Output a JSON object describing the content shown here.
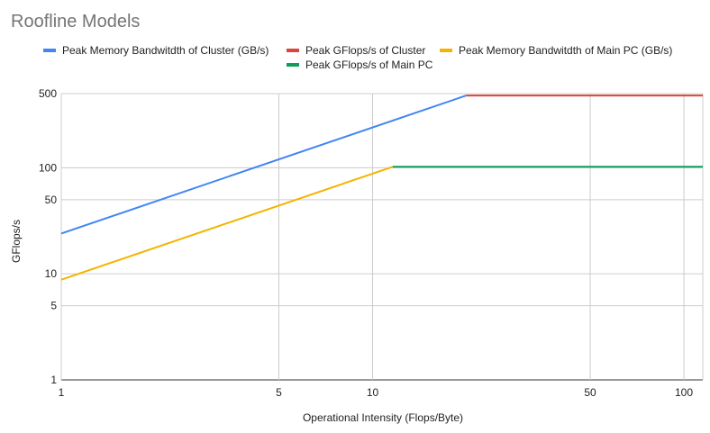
{
  "chart_data": {
    "type": "line",
    "title": "Roofline Models",
    "xlabel": "Operational Intensity (Flops/Byte)",
    "ylabel": "GFlops/s",
    "x_scale": "log",
    "y_scale": "log",
    "xlim": [
      1,
      115
    ],
    "ylim": [
      1,
      500
    ],
    "x_ticks": [
      1,
      5,
      10,
      50,
      100
    ],
    "y_ticks": [
      1,
      5,
      10,
      50,
      100,
      500
    ],
    "grid": true,
    "legend_position": "top",
    "series": [
      {
        "name": "Peak Memory Bandwitdth of Cluster (GB/s)",
        "color": "#4285f4",
        "x": [
          1,
          20
        ],
        "y": [
          24,
          480
        ]
      },
      {
        "name": "Peak GFlops/s of Cluster",
        "color": "#db4437",
        "x": [
          20,
          115
        ],
        "y": [
          480,
          480
        ]
      },
      {
        "name": "Peak Memory Bandwitdth of Main PC (GB/s)",
        "color": "#f4b400",
        "x": [
          1,
          11.6
        ],
        "y": [
          8.8,
          102
        ]
      },
      {
        "name": "Peak GFlops/s of Main PC",
        "color": "#0f9d58",
        "x": [
          11.6,
          115
        ],
        "y": [
          102,
          102
        ]
      }
    ]
  }
}
